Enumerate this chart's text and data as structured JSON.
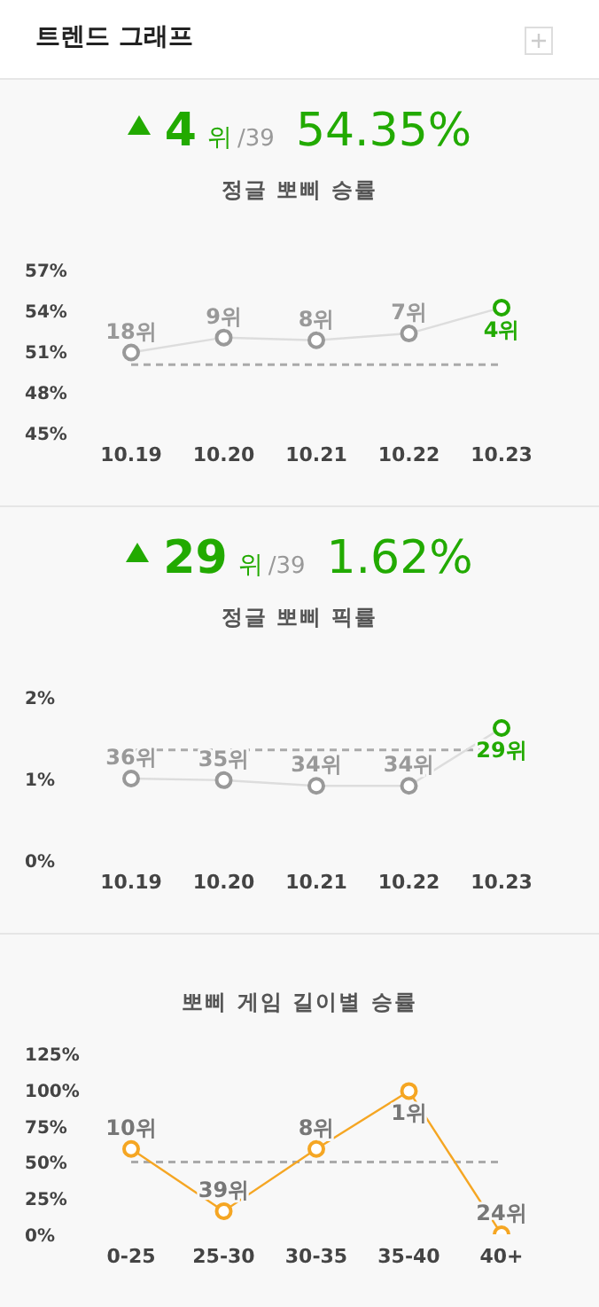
{
  "chart_data": [
    {
      "type": "line",
      "title": "정글 뽀삐 승률",
      "annotations": [
        "트렌드 그래프",
        "4",
        "위",
        "/39",
        "54.35%",
        {
          "text": "18위",
          "x": "10.19",
          "y": 50.9
        },
        {
          "text": "9위",
          "x": "10.20",
          "y": 52.0
        },
        {
          "text": "8위",
          "x": "10.21",
          "y": 51.8
        },
        {
          "text": "7위",
          "x": "10.22",
          "y": 52.3
        },
        {
          "text": "4위",
          "x": "10.23",
          "y": 54.2
        }
      ],
      "categories": [
        "10.19",
        "10.20",
        "10.21",
        "10.22",
        "10.23"
      ],
      "series": [
        {
          "color": "#dddddd",
          "colors": [
            "#999999",
            "#999999",
            "#999999",
            "#999999",
            "#22aa00"
          ],
          "values": [
            50.9,
            52.0,
            51.8,
            52.3,
            54.2
          ]
        }
      ],
      "ylim": [
        45,
        57
      ],
      "yticks": [
        {
          "value": 45,
          "label": "45%"
        },
        {
          "value": 48,
          "label": "48%"
        },
        {
          "value": 51,
          "label": "51%"
        },
        {
          "value": 54,
          "label": "54%"
        },
        {
          "value": 57,
          "label": "57%"
        }
      ],
      "ref_lines": [
        {
          "axis": "y",
          "value": 50,
          "color": "#aaaaaa",
          "line_style": "dashed"
        }
      ],
      "marker": "circle",
      "grid": false,
      "legend": false
    },
    {
      "type": "line",
      "title": "정글 뽀삐 픽률",
      "annotations": [
        "29",
        "위",
        "/39",
        "1.62%",
        {
          "text": "36위",
          "x": "10.19",
          "y": 1.0
        },
        {
          "text": "35위",
          "x": "10.20",
          "y": 0.98
        },
        {
          "text": "34위",
          "x": "10.21",
          "y": 0.91
        },
        {
          "text": "34위",
          "x": "10.22",
          "y": 0.91
        },
        {
          "text": "29위",
          "x": "10.23",
          "y": 1.62
        }
      ],
      "categories": [
        "10.19",
        "10.20",
        "10.21",
        "10.22",
        "10.23"
      ],
      "series": [
        {
          "color": "#dddddd",
          "colors": [
            "#999999",
            "#999999",
            "#999999",
            "#999999",
            "#22aa00"
          ],
          "values": [
            1.0,
            0.98,
            0.91,
            0.91,
            1.62
          ]
        }
      ],
      "ylim": [
        0,
        2
      ],
      "yticks": [
        {
          "value": 0,
          "label": "0%"
        },
        {
          "value": 1,
          "label": "1%"
        },
        {
          "value": 2,
          "label": "2%"
        }
      ],
      "ref_lines": [
        {
          "axis": "y",
          "value": 1.35,
          "color": "#aaaaaa",
          "line_style": "dashed"
        }
      ],
      "marker": "circle",
      "grid": false,
      "legend": false
    },
    {
      "type": "line",
      "title": "뽀삐 게임 길이별 승률",
      "annotations": [
        {
          "text": "10위",
          "x": "0-25",
          "y": 59
        },
        {
          "text": "39위",
          "x": "25-30",
          "y": 16
        },
        {
          "text": "8위",
          "x": "30-35",
          "y": 59
        },
        {
          "text": "1위",
          "x": "35-40",
          "y": 99
        },
        {
          "text": "24위",
          "x": "40+",
          "y": 0
        }
      ],
      "categories": [
        "0-25",
        "25-30",
        "30-35",
        "35-40",
        "40+"
      ],
      "series": [
        {
          "color": "#f5a623",
          "values": [
            59,
            16,
            59,
            99,
            0
          ]
        }
      ],
      "ylim": [
        0,
        125
      ],
      "yticks": [
        {
          "value": 0,
          "label": "0%"
        },
        {
          "value": 25,
          "label": "25%"
        },
        {
          "value": 50,
          "label": "50%"
        },
        {
          "value": 75,
          "label": "75%"
        },
        {
          "value": 100,
          "label": "100%"
        },
        {
          "value": 125,
          "label": "125%"
        }
      ],
      "ref_lines": [
        {
          "axis": "y",
          "value": 50,
          "color": "#aaaaaa",
          "line_style": "dashed"
        }
      ],
      "marker": "circle",
      "grid": false,
      "legend": false
    }
  ]
}
